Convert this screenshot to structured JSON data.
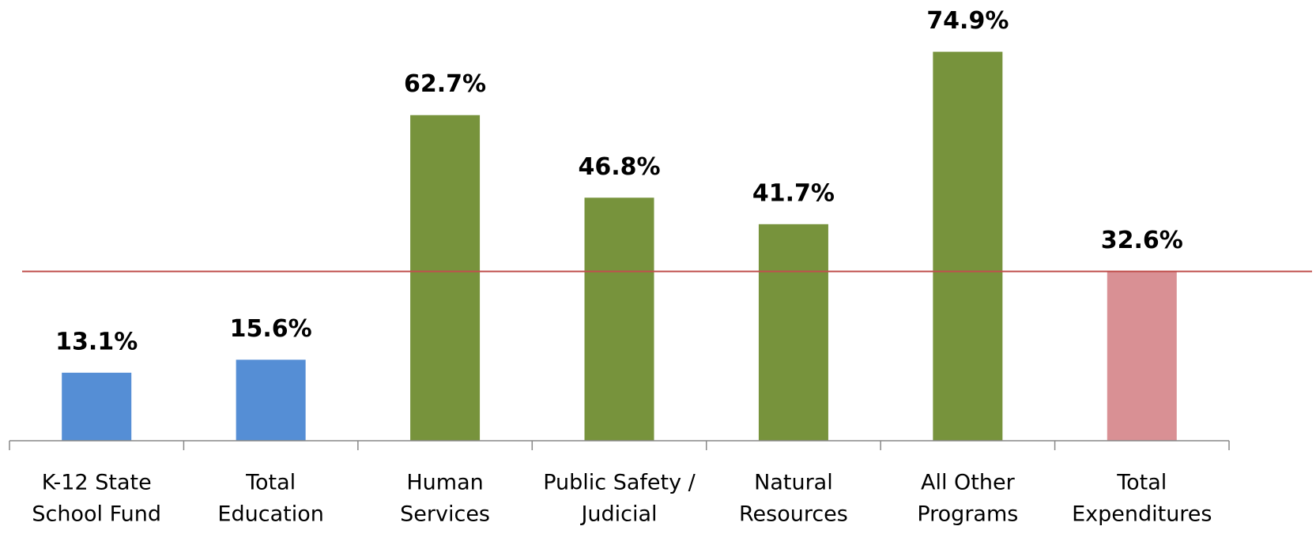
{
  "chart_data": {
    "type": "bar",
    "categories": [
      [
        "K-12 State",
        "School Fund"
      ],
      [
        "Total",
        "Education"
      ],
      [
        "Human",
        "Services"
      ],
      [
        "Public Safety /",
        "Judicial"
      ],
      [
        "Natural",
        "Resources"
      ],
      [
        "All Other",
        "Programs"
      ],
      [
        "Total",
        "Expenditures"
      ]
    ],
    "values": [
      13.1,
      15.6,
      62.7,
      46.8,
      41.7,
      74.9,
      32.6
    ],
    "value_labels": [
      "13.1%",
      "15.6%",
      "62.7%",
      "46.8%",
      "41.7%",
      "74.9%",
      "32.6%"
    ],
    "colors": [
      "#558ed5",
      "#558ed5",
      "#77933c",
      "#77933c",
      "#77933c",
      "#77933c",
      "#d99094"
    ],
    "reference_line": {
      "value": 32.6,
      "color": "#c0504d"
    },
    "ylim": [
      0,
      80
    ]
  }
}
